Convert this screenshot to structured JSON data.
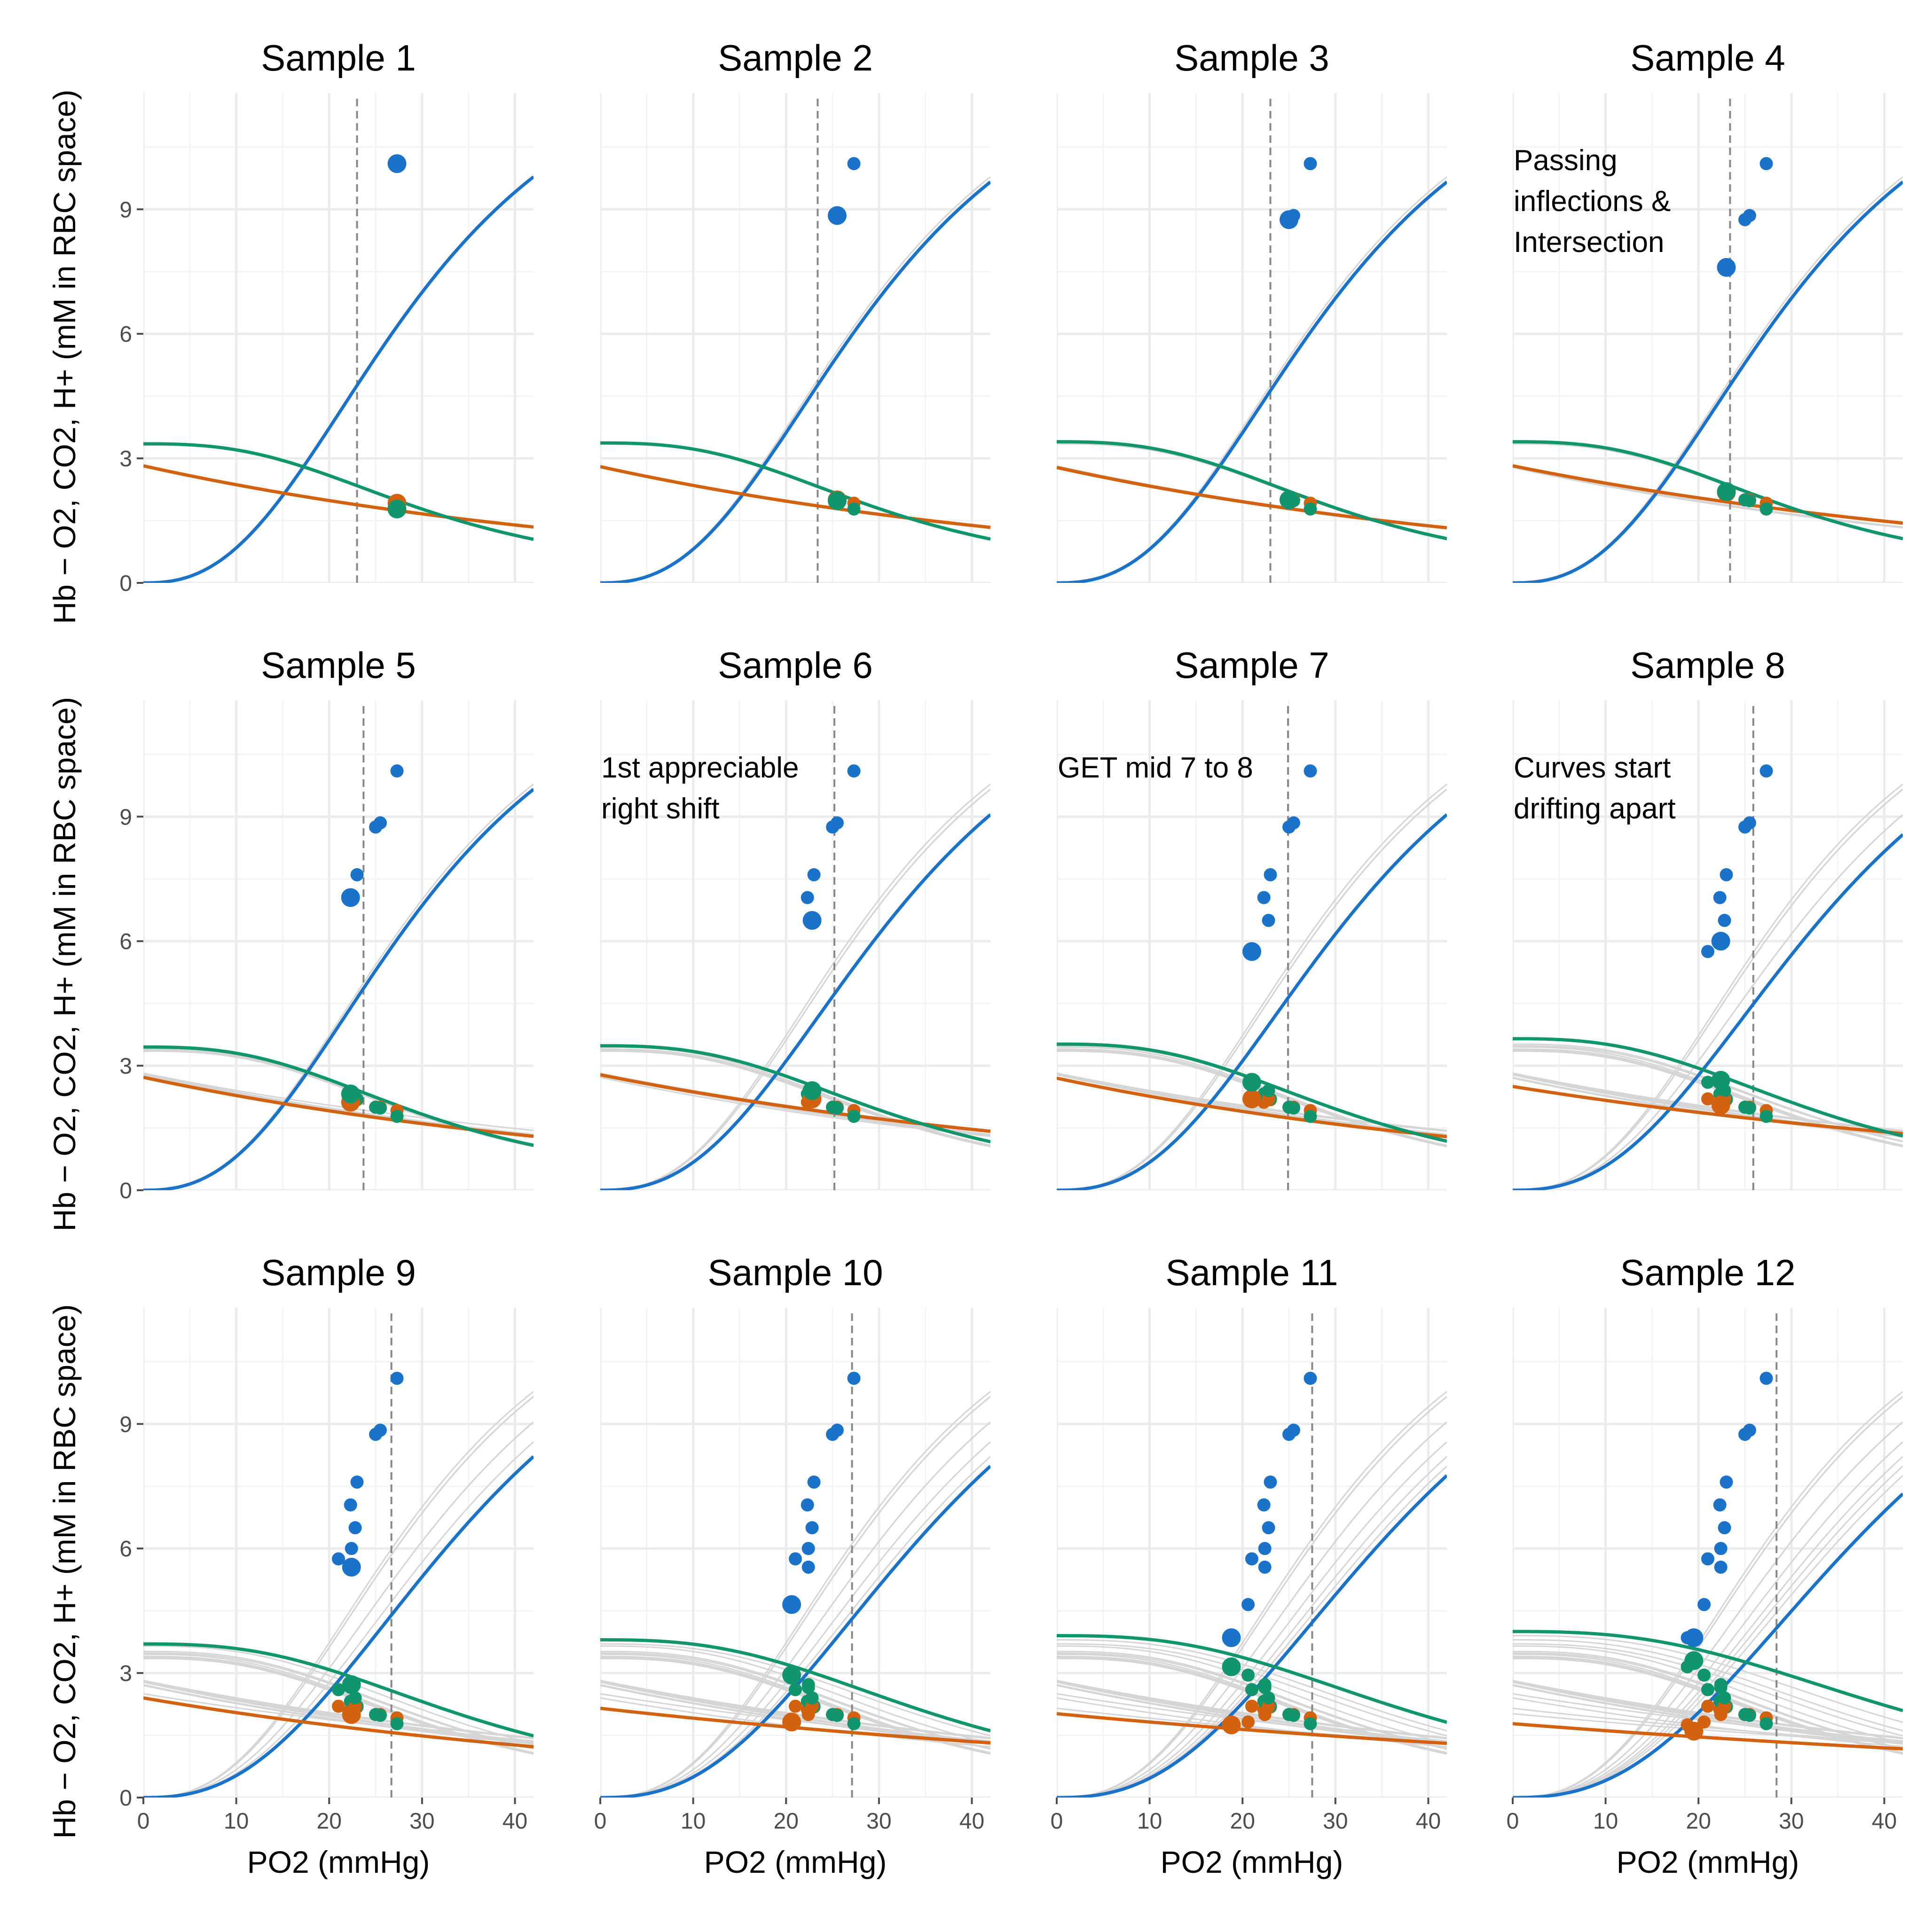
{
  "chart_data": {
    "type": "line",
    "ylabel": "Hb − O2, CO2, H+  (mM in RBC space)",
    "xlabel": "PO2 (mmHg)",
    "xlim": [
      0,
      42
    ],
    "ylim": [
      0,
      11.8
    ],
    "x_ticks": [
      0,
      10,
      20,
      30,
      40
    ],
    "y_ticks": [
      0,
      3,
      6,
      9
    ],
    "grid": true,
    "colors": {
      "Hb-O2": "#1a72c9",
      "CO2": "#d2620f",
      "H+": "#11956c",
      "guide": "#888888",
      "history": "#d5d5d5"
    },
    "curve_params": [
      {
        "panel": "Sample 1",
        "hbo2_p50": 30.0,
        "hbo2_n": 2.5,
        "co2_0": 2.82,
        "co2_k": 0.011,
        "h_0": 3.35,
        "h_p50": 26,
        "h_n": 2.7
      },
      {
        "panel": "Sample 2",
        "hbo2_p50": 30.5,
        "hbo2_n": 2.5,
        "co2_0": 2.8,
        "co2_k": 0.011,
        "h_0": 3.37,
        "h_p50": 26,
        "h_n": 2.7
      },
      {
        "panel": "Sample 3",
        "hbo2_p50": 30.5,
        "hbo2_n": 2.5,
        "co2_0": 2.78,
        "co2_k": 0.011,
        "h_0": 3.4,
        "h_p50": 26,
        "h_n": 2.7
      },
      {
        "panel": "Sample 4",
        "hbo2_p50": 30.5,
        "hbo2_n": 2.5,
        "co2_0": 2.82,
        "co2_k": 0.01,
        "h_0": 3.4,
        "h_p50": 26,
        "h_n": 2.7
      },
      {
        "panel": "Sample 5",
        "hbo2_p50": 30.5,
        "hbo2_n": 2.5,
        "co2_0": 2.72,
        "co2_k": 0.011,
        "h_0": 3.45,
        "h_p50": 26,
        "h_n": 2.7
      },
      {
        "panel": "Sample 6",
        "hbo2_p50": 33.0,
        "hbo2_n": 2.5,
        "co2_0": 2.78,
        "co2_k": 0.01,
        "h_0": 3.48,
        "h_p50": 27,
        "h_n": 2.7
      },
      {
        "panel": "Sample 7",
        "hbo2_p50": 33.0,
        "hbo2_n": 2.5,
        "co2_0": 2.7,
        "co2_k": 0.011,
        "h_0": 3.52,
        "h_p50": 27,
        "h_n": 2.7
      },
      {
        "panel": "Sample 8",
        "hbo2_p50": 35.0,
        "hbo2_n": 2.5,
        "co2_0": 2.5,
        "co2_k": 0.009,
        "h_0": 3.65,
        "h_p50": 28,
        "h_n": 2.7
      },
      {
        "panel": "Sample 9",
        "hbo2_p50": 36.5,
        "hbo2_n": 2.5,
        "co2_0": 2.4,
        "co2_k": 0.01,
        "h_0": 3.7,
        "h_p50": 30,
        "h_n": 2.7
      },
      {
        "panel": "Sample 10",
        "hbo2_p50": 37.5,
        "hbo2_n": 2.5,
        "co2_0": 2.15,
        "co2_k": 0.0073,
        "h_0": 3.8,
        "h_p50": 31,
        "h_n": 2.7
      },
      {
        "panel": "Sample 11",
        "hbo2_p50": 38.5,
        "hbo2_n": 2.5,
        "co2_0": 2.02,
        "co2_k": 0.0065,
        "h_0": 3.9,
        "h_p50": 33,
        "h_n": 2.7
      },
      {
        "panel": "Sample 12",
        "hbo2_p50": 40.5,
        "hbo2_n": 2.5,
        "co2_0": 1.78,
        "co2_k": 0.0062,
        "h_0": 4.0,
        "h_p50": 36,
        "h_n": 2.7
      }
    ],
    "panels": [
      {
        "title": "Sample 1",
        "vline": 23.0,
        "annotation": [],
        "current": {
          "x": 27.3,
          "hbo2": 10.1,
          "co2": 1.92,
          "h": 1.78
        }
      },
      {
        "title": "Sample 2",
        "vline": 23.4,
        "annotation": [],
        "current": {
          "x": 25.5,
          "hbo2": 8.85,
          "co2": 2.0,
          "h": 1.98
        }
      },
      {
        "title": "Sample 3",
        "vline": 23.0,
        "annotation": [],
        "current": {
          "x": 25.0,
          "hbo2": 8.75,
          "co2": 2.0,
          "h": 2.0
        }
      },
      {
        "title": "Sample 4",
        "vline": 23.4,
        "annotation": [
          "Passing",
          "inflections &",
          "Intersection"
        ],
        "current": {
          "x": 23.0,
          "hbo2": 7.6,
          "co2": 2.18,
          "h": 2.2
        }
      },
      {
        "title": "Sample 5",
        "vline": 23.7,
        "annotation": [],
        "current": {
          "x": 22.3,
          "hbo2": 7.05,
          "co2": 2.12,
          "h": 2.32
        }
      },
      {
        "title": "Sample 6",
        "vline": 25.2,
        "annotation": [
          "1st appreciable",
          "right shift"
        ],
        "current": {
          "x": 22.8,
          "hbo2": 6.5,
          "co2": 2.2,
          "h": 2.4
        }
      },
      {
        "title": "Sample 7",
        "vline": 24.9,
        "annotation": [
          "GET mid 7 to 8"
        ],
        "current": {
          "x": 21.0,
          "hbo2": 5.75,
          "co2": 2.2,
          "h": 2.6
        }
      },
      {
        "title": "Sample 8",
        "vline": 25.9,
        "annotation": [
          "Curves start",
          "drifting apart"
        ],
        "current": {
          "x": 22.4,
          "hbo2": 6.0,
          "co2": 2.05,
          "h": 2.65
        }
      },
      {
        "title": "Sample 9",
        "vline": 26.7,
        "annotation": [],
        "current": {
          "x": 22.4,
          "hbo2": 5.55,
          "co2": 2.0,
          "h": 2.72
        }
      },
      {
        "title": "Sample 10",
        "vline": 27.1,
        "annotation": [],
        "current": {
          "x": 20.6,
          "hbo2": 4.65,
          "co2": 1.82,
          "h": 2.95
        }
      },
      {
        "title": "Sample 11",
        "vline": 27.5,
        "annotation": [],
        "current": {
          "x": 18.8,
          "hbo2": 3.85,
          "co2": 1.75,
          "h": 3.15
        }
      },
      {
        "title": "Sample 12",
        "vline": 28.4,
        "annotation": [],
        "current": {
          "x": 19.5,
          "hbo2": 3.85,
          "co2": 1.6,
          "h": 3.3
        }
      }
    ]
  }
}
